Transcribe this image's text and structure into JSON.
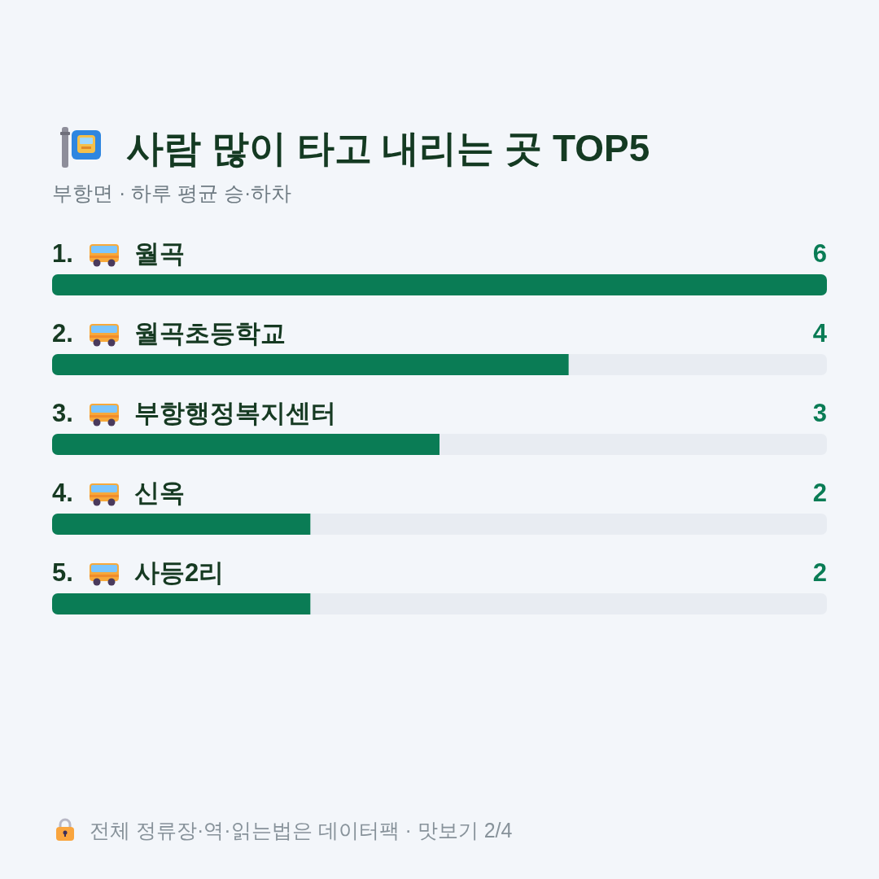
{
  "chart_data": {
    "type": "bar",
    "orientation": "horizontal",
    "title": "사람 많이 타고 내리는 곳 TOP5",
    "subtitle": "부항면 · 하루 평균 승·하차",
    "categories": [
      "1. 월곡",
      "2. 월곡초등학교",
      "3. 부항행정복지센터",
      "4. 신옥",
      "5. 사등2리"
    ],
    "values": [
      6,
      4,
      3,
      2,
      2
    ],
    "color": "#0a7c55",
    "xlim": [
      0,
      6
    ],
    "data_labels": true,
    "annotations": [
      "전체 정류장·역·읽는법은 데이터팩 · 맛보기 2/4"
    ]
  }
}
